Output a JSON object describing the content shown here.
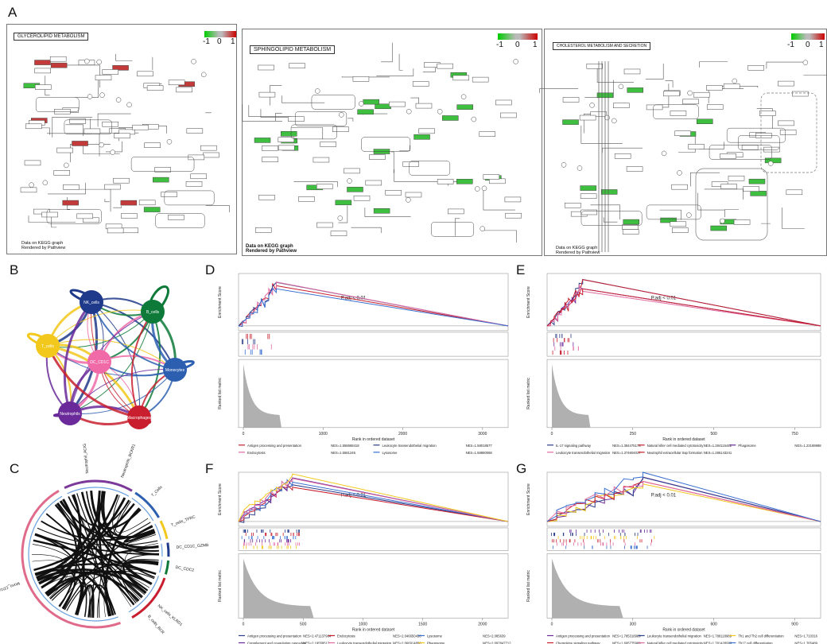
{
  "panels": {
    "A": "A",
    "B": "B",
    "C": "C",
    "D": "D",
    "E": "E",
    "F": "F",
    "G": "G"
  },
  "kegg": [
    {
      "title": "GLYCEROLIPID METABOLISM",
      "scale_min": "-1",
      "scale_mid": "0",
      "scale_max": "1",
      "footer1": "Data on KEGG graph",
      "footer2": "Rendered by Pathview"
    },
    {
      "title": "SPHINGOLIPID METABOLISM",
      "scale_min": "-1",
      "scale_mid": "0",
      "scale_max": "1",
      "footer1": "Data on KEGG graph",
      "footer2": "Rendered by Pathview"
    },
    {
      "title": "CHOLESTEROL METABOLISM AND SECRETION",
      "scale_min": "-1",
      "scale_mid": "0",
      "scale_max": "1",
      "footer1": "Data on KEGG graph",
      "footer2": "Rendered by Pathview"
    }
  ],
  "scale_colors": {
    "low": "#00cc00",
    "mid": "#bbbbbb",
    "high": "#cc0000"
  },
  "network": {
    "nodes": [
      {
        "label": "NK_cells",
        "color": "#1f3a8a"
      },
      {
        "label": "B_cells",
        "color": "#0e7a3a"
      },
      {
        "label": "T_cells",
        "color": "#f2c81c"
      },
      {
        "label": "DC_CD1C",
        "color": "#f06aa8"
      },
      {
        "label": "Monocytes",
        "color": "#2d5fb0"
      },
      {
        "label": "Neutrophils",
        "color": "#6a2a9a"
      },
      {
        "label": "Macrophages",
        "color": "#c81e2e"
      }
    ]
  },
  "chord": {
    "labels": [
      "Neutrophil_ACIG",
      "Neutrophils_BCKR1",
      "T_Cells",
      "T_cells_TFRC",
      "DC_CD1C_GZMB",
      "DC_CDC2",
      "NK_cells_KLRD1",
      "B_cells_BCR",
      "Mono_CD14"
    ]
  },
  "charts": {
    "D": {
      "padj": "P.adj < 0.01",
      "ylabel_es": "Enrichment Score",
      "ylabel_rank": "Ranked list metric",
      "xlabel": "Rank in ordered dataset",
      "xticks": [
        "0",
        "1000",
        "2000",
        "3000"
      ],
      "legend": [
        {
          "name": "Antigen processing and presentation",
          "nes": "NES=1.558668418",
          "color": "#c81e2e"
        },
        {
          "name": "Leukocyte transendothelial migration",
          "nes": "NES=1.58018577",
          "color": "#2d3e8a"
        },
        {
          "name": "Endocytosis",
          "nes": "NES=1.5581245",
          "color": "#e06aa0"
        },
        {
          "name": "Lysosome",
          "nes": "NES=1.58880068",
          "color": "#3a6fd0"
        }
      ]
    },
    "E": {
      "padj": "P.adj < 0.01",
      "ylabel_es": "Enrichment Score",
      "ylabel_rank": "Ranked list metric",
      "xlabel": "Rank in ordered dataset",
      "xticks": [
        "0",
        "250",
        "500",
        "750"
      ],
      "legend": [
        {
          "name": "IL-17 signaling pathway",
          "nes": "NES=1.384475178",
          "color": "#2d3e8a"
        },
        {
          "name": "Natural killer cell mediated cytotoxicity",
          "nes": "NES=1.284115442",
          "color": "#c81e2e"
        },
        {
          "name": "Phagosome",
          "nes": "NES=1.23169988",
          "color": "#6a2a9a"
        },
        {
          "name": "Leukocyte transendothelial migration",
          "nes": "NES=1.374604017",
          "color": "#e06aa0"
        },
        {
          "name": "Neutrophil extracellular trap formation",
          "nes": "NES=1.285143241",
          "color": "#c81e2e"
        }
      ]
    },
    "F": {
      "padj": "P.adj < 0.01",
      "ylabel_es": "Enrichment Score",
      "ylabel_rank": "Ranked list metric",
      "xlabel": "Rank in ordered dataset",
      "xticks": [
        "0",
        "500",
        "1000",
        "1500",
        "2000"
      ],
      "legend": [
        {
          "name": "Antigen processing and presentation",
          "nes": "NES=2.471137984",
          "color": "#2d3e8a"
        },
        {
          "name": "Endocytosis",
          "nes": "NES=2.046650456",
          "color": "#c81e2e"
        },
        {
          "name": "Lysosome",
          "nes": "NES=2.085639",
          "color": "#3a6fd0"
        },
        {
          "name": "Complement and coagulation cascades",
          "nes": "NES=2.19558517",
          "color": "#6a2a9a"
        },
        {
          "name": "Leukocyte transendothelial migration",
          "nes": "NES=2.066914856",
          "color": "#e06aa0"
        },
        {
          "name": "Phagosome",
          "nes": "NES=2.097847712",
          "color": "#f2c81c"
        }
      ]
    },
    "G": {
      "padj": "P.adj < 0.01",
      "ylabel_es": "Enrichment Score",
      "ylabel_rank": "Ranked list metric",
      "xlabel": "Rank in ordered dataset",
      "xticks": [
        "0",
        "300",
        "600",
        "900"
      ],
      "legend": [
        {
          "name": "Antigen processing and presentation",
          "nes": "NES=1.785318989",
          "color": "#6a2a9a"
        },
        {
          "name": "Leukocyte transendothelial migration",
          "nes": "NES=1.788118989",
          "color": "#2d3e8a"
        },
        {
          "name": "Th1 and Th2 cell differentiation",
          "nes": "NES=1.710316",
          "color": "#f2c81c"
        },
        {
          "name": "Chemokine signaling pathway",
          "nes": "NES=1.695775989",
          "color": "#c81e2e"
        },
        {
          "name": "Natural killer cell mediated cytotoxicity",
          "nes": "NES=1.781428999",
          "color": "#e06aa0"
        },
        {
          "name": "Th17 cell differentiation",
          "nes": "NES=1.765489",
          "color": "#3a6fd0"
        }
      ]
    }
  }
}
